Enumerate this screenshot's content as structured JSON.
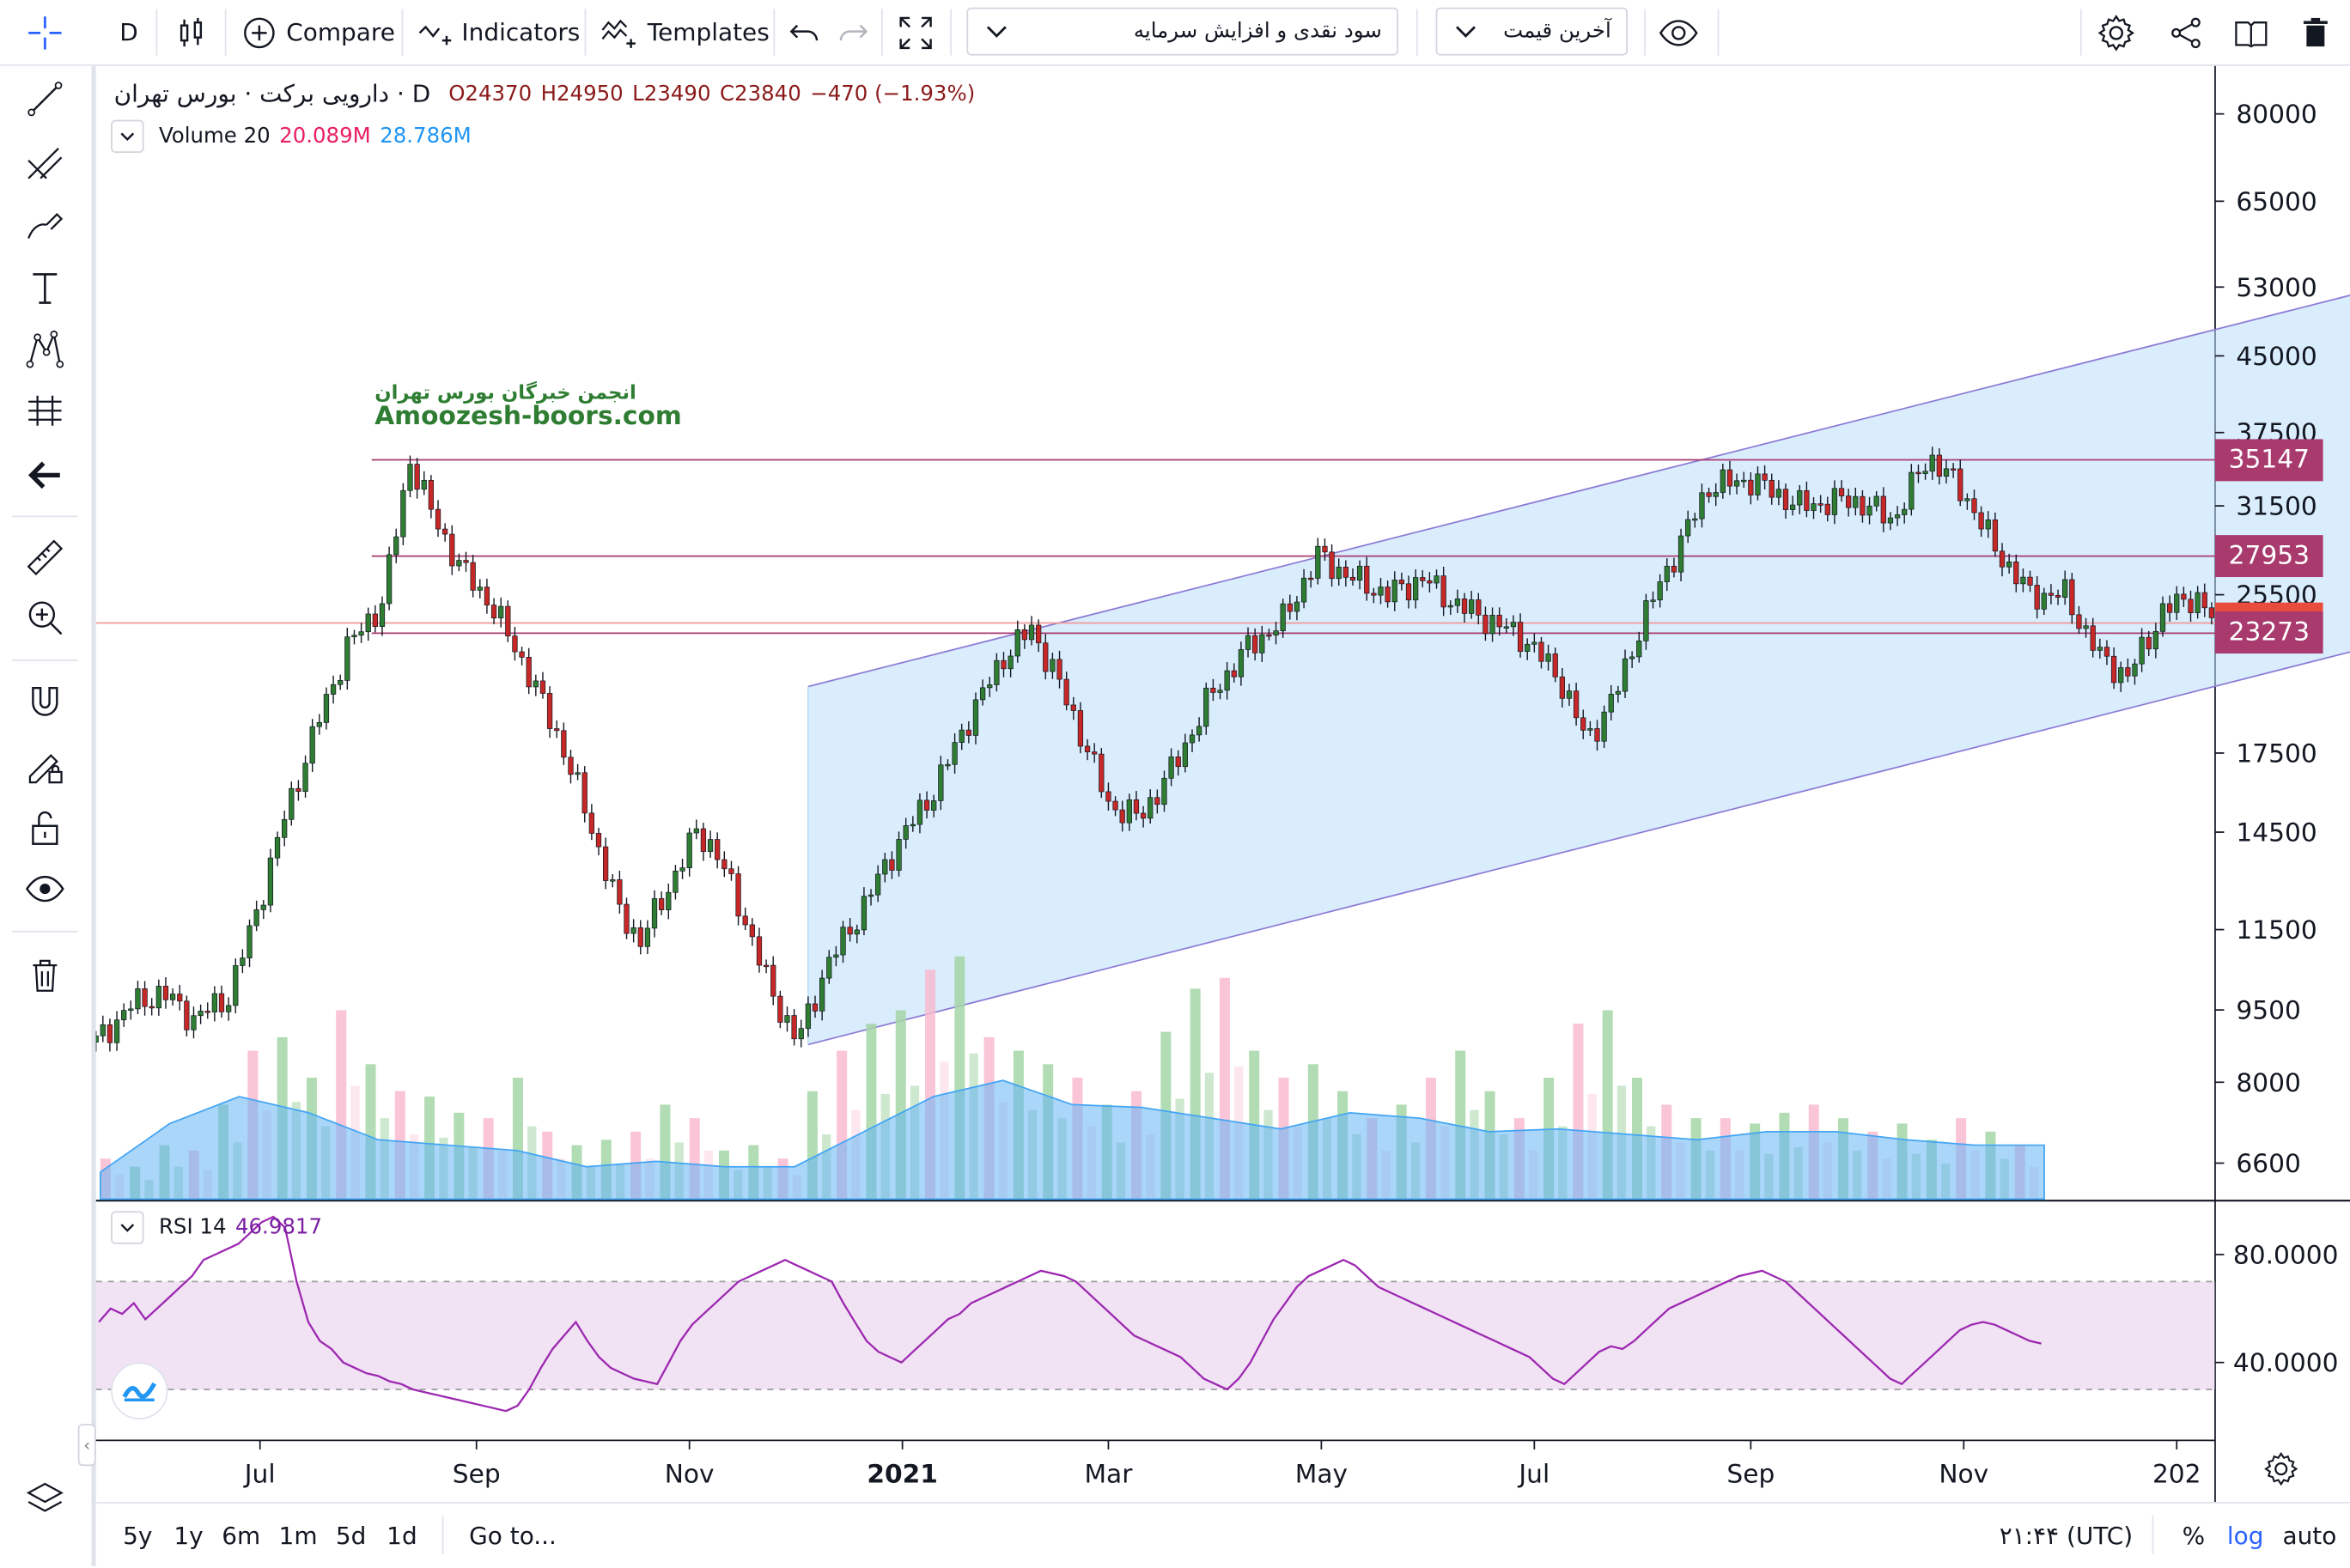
{
  "toolbar": {
    "interval": "D",
    "compare": "Compare",
    "indicators": "Indicators",
    "templates": "Templates",
    "study_template": "سود نقدی و افزایش سرمایه",
    "price_source": "آخرین قیمت"
  },
  "legend": {
    "symbol": "دارویی برکت · بورس تهران · D",
    "open": "O24370",
    "high": "H24950",
    "low": "L23490",
    "close": "C23840",
    "change": "−470 (−1.93%)",
    "volume_label": "Volume 20",
    "volume_value": "20.089M",
    "volume_ma": "28.786M",
    "rsi_label": "RSI 14",
    "rsi_value": "46.9817"
  },
  "watermark": {
    "line1": "انجمن خبرگان بورس تهران",
    "line2": "Amoozesh-boors.com"
  },
  "price_tags": [
    {
      "value": "35147",
      "color": "#a83a6e"
    },
    {
      "value": "27953",
      "color": "#a83a6e"
    },
    {
      "value": "23840",
      "color": "#e74c3c"
    },
    {
      "value": "23273",
      "color": "#a83a6e"
    }
  ],
  "bottom": {
    "ranges": [
      "5y",
      "1y",
      "6m",
      "1m",
      "5d",
      "1d"
    ],
    "goto": "Go to...",
    "time": "۲۱:۴۴ (UTC)",
    "percent": "%",
    "log": "log",
    "auto": "auto"
  },
  "chart_data": [
    {
      "type": "candlestick",
      "title": "دارویی برکت",
      "y_scale": "log",
      "ylim": [
        5900,
        90000
      ],
      "y_ticks": [
        "80000",
        "65000",
        "53000",
        "45000",
        "37500",
        "31500",
        "25500",
        "17500",
        "14500",
        "11500",
        "9500",
        "8000",
        "6600"
      ],
      "x_ticks": [
        "Jul",
        "Sep",
        "Nov",
        "2021",
        "Mar",
        "May",
        "Jul",
        "Sep",
        "Nov",
        "202"
      ],
      "x_range": [
        "2020-05-15",
        "2022-01-12"
      ],
      "close_path": [
        {
          "x": "2020-05-15",
          "y": 8800
        },
        {
          "x": "2020-05-25",
          "y": 9600
        },
        {
          "x": "2020-06-03",
          "y": 9900
        },
        {
          "x": "2020-06-12",
          "y": 9300
        },
        {
          "x": "2020-06-22",
          "y": 9800
        },
        {
          "x": "2020-06-30",
          "y": 12000
        },
        {
          "x": "2020-07-08",
          "y": 15000
        },
        {
          "x": "2020-07-18",
          "y": 19000
        },
        {
          "x": "2020-07-26",
          "y": 22500
        },
        {
          "x": "2020-08-05",
          "y": 25000
        },
        {
          "x": "2020-08-13",
          "y": 35147
        },
        {
          "x": "2020-08-20",
          "y": 30500
        },
        {
          "x": "2020-08-28",
          "y": 27000
        },
        {
          "x": "2020-09-05",
          "y": 25000
        },
        {
          "x": "2020-09-15",
          "y": 21500
        },
        {
          "x": "2020-09-25",
          "y": 18000
        },
        {
          "x": "2020-10-03",
          "y": 15000
        },
        {
          "x": "2020-10-12",
          "y": 12000
        },
        {
          "x": "2020-10-18",
          "y": 11200
        },
        {
          "x": "2020-10-25",
          "y": 12500
        },
        {
          "x": "2020-11-03",
          "y": 14500
        },
        {
          "x": "2020-11-08",
          "y": 14000
        },
        {
          "x": "2020-11-16",
          "y": 12000
        },
        {
          "x": "2020-11-24",
          "y": 10000
        },
        {
          "x": "2020-12-02",
          "y": 8800
        },
        {
          "x": "2020-12-10",
          "y": 10500
        },
        {
          "x": "2020-12-20",
          "y": 12000
        },
        {
          "x": "2020-12-30",
          "y": 14000
        },
        {
          "x": "2021-01-10",
          "y": 16000
        },
        {
          "x": "2021-01-20",
          "y": 19000
        },
        {
          "x": "2021-01-30",
          "y": 22000
        },
        {
          "x": "2021-02-07",
          "y": 23500
        },
        {
          "x": "2021-02-14",
          "y": 21000
        },
        {
          "x": "2021-02-22",
          "y": 18000
        },
        {
          "x": "2021-03-01",
          "y": 15500
        },
        {
          "x": "2021-03-10",
          "y": 15000
        },
        {
          "x": "2021-03-20",
          "y": 17000
        },
        {
          "x": "2021-03-30",
          "y": 20000
        },
        {
          "x": "2021-04-10",
          "y": 22500
        },
        {
          "x": "2021-04-20",
          "y": 24000
        },
        {
          "x": "2021-04-30",
          "y": 27953
        },
        {
          "x": "2021-05-10",
          "y": 26500
        },
        {
          "x": "2021-05-20",
          "y": 25500
        },
        {
          "x": "2021-05-30",
          "y": 26500
        },
        {
          "x": "2021-06-08",
          "y": 25000
        },
        {
          "x": "2021-06-18",
          "y": 24000
        },
        {
          "x": "2021-06-28",
          "y": 23000
        },
        {
          "x": "2021-07-08",
          "y": 21000
        },
        {
          "x": "2021-07-16",
          "y": 18000
        },
        {
          "x": "2021-07-24",
          "y": 20000
        },
        {
          "x": "2021-08-01",
          "y": 24000
        },
        {
          "x": "2021-08-10",
          "y": 28000
        },
        {
          "x": "2021-08-20",
          "y": 33000
        },
        {
          "x": "2021-09-01",
          "y": 33500
        },
        {
          "x": "2021-09-15",
          "y": 31500
        },
        {
          "x": "2021-09-30",
          "y": 32000
        },
        {
          "x": "2021-10-12",
          "y": 30500
        },
        {
          "x": "2021-10-22",
          "y": 35500
        },
        {
          "x": "2021-11-01",
          "y": 32500
        },
        {
          "x": "2021-11-10",
          "y": 28500
        },
        {
          "x": "2021-11-20",
          "y": 25500
        },
        {
          "x": "2021-11-30",
          "y": 25500
        },
        {
          "x": "2021-12-10",
          "y": 22000
        },
        {
          "x": "2021-12-18",
          "y": 21000
        },
        {
          "x": "2021-12-28",
          "y": 24500
        },
        {
          "x": "2022-01-06",
          "y": 25500
        },
        {
          "x": "2022-01-12",
          "y": 23840
        }
      ],
      "horizontal_lines": [
        35147,
        27953,
        23840,
        23273
      ],
      "channel": {
        "upper": [
          {
            "x": "2020-12-05",
            "y": 20500
          },
          {
            "x": "2022-03-01",
            "y": 53000
          }
        ],
        "lower": [
          {
            "x": "2020-12-05",
            "y": 8750
          },
          {
            "x": "2022-03-01",
            "y": 22700
          }
        ]
      }
    },
    {
      "type": "bar",
      "title": "Volume 20",
      "values_relative": [
        0.15,
        0.12,
        0.2,
        0.18,
        0.35,
        0.55,
        0.6,
        0.45,
        0.7,
        0.5,
        0.4,
        0.38,
        0.32,
        0.3,
        0.45,
        0.25,
        0.2,
        0.22,
        0.25,
        0.35,
        0.3,
        0.18,
        0.2,
        0.15,
        0.4,
        0.55,
        0.65,
        0.7,
        0.85,
        0.9,
        0.6,
        0.55,
        0.5,
        0.45,
        0.35,
        0.4,
        0.62,
        0.78,
        0.82,
        0.55,
        0.45,
        0.5,
        0.4,
        0.3,
        0.35,
        0.45,
        0.55,
        0.4,
        0.3,
        0.45,
        0.65,
        0.7,
        0.45,
        0.35,
        0.3,
        0.3,
        0.28,
        0.32,
        0.35,
        0.3,
        0.25,
        0.28,
        0.22,
        0.3,
        0.25,
        0.2
      ],
      "ma_relative": [
        0.1,
        0.28,
        0.38,
        0.32,
        0.22,
        0.2,
        0.18,
        0.12,
        0.14,
        0.12,
        0.12,
        0.25,
        0.38,
        0.44,
        0.35,
        0.34,
        0.3,
        0.26,
        0.32,
        0.3,
        0.25,
        0.26,
        0.24,
        0.22,
        0.25,
        0.25,
        0.22,
        0.2,
        0.2
      ]
    },
    {
      "type": "line",
      "title": "RSI 14",
      "y_ticks": [
        "80.0000",
        "40.0000"
      ],
      "band": [
        30,
        70
      ],
      "values": [
        55,
        60,
        58,
        62,
        56,
        60,
        64,
        68,
        72,
        78,
        80,
        82,
        84,
        88,
        92,
        94,
        90,
        70,
        55,
        48,
        45,
        40,
        38,
        36,
        35,
        33,
        32,
        30,
        29,
        28,
        27,
        26,
        25,
        24,
        23,
        22,
        24,
        30,
        38,
        45,
        50,
        55,
        48,
        42,
        38,
        36,
        34,
        33,
        32,
        40,
        48,
        54,
        58,
        62,
        66,
        70,
        72,
        74,
        76,
        78,
        76,
        74,
        72,
        70,
        62,
        55,
        48,
        44,
        42,
        40,
        44,
        48,
        52,
        56,
        58,
        62,
        64,
        66,
        68,
        70,
        72,
        74,
        73,
        72,
        70,
        66,
        62,
        58,
        54,
        50,
        48,
        46,
        44,
        42,
        38,
        34,
        32,
        30,
        34,
        40,
        48,
        56,
        62,
        68,
        72,
        74,
        76,
        78,
        76,
        72,
        68,
        66,
        64,
        62,
        60,
        58,
        56,
        54,
        52,
        50,
        48,
        46,
        44,
        42,
        38,
        34,
        32,
        36,
        40,
        44,
        46,
        45,
        48,
        52,
        56,
        60,
        62,
        64,
        66,
        68,
        70,
        72,
        73,
        74,
        72,
        70,
        66,
        62,
        58,
        54,
        50,
        46,
        42,
        38,
        34,
        32,
        36,
        40,
        44,
        48,
        52,
        54,
        55,
        54,
        52,
        50,
        48,
        47
      ]
    }
  ]
}
